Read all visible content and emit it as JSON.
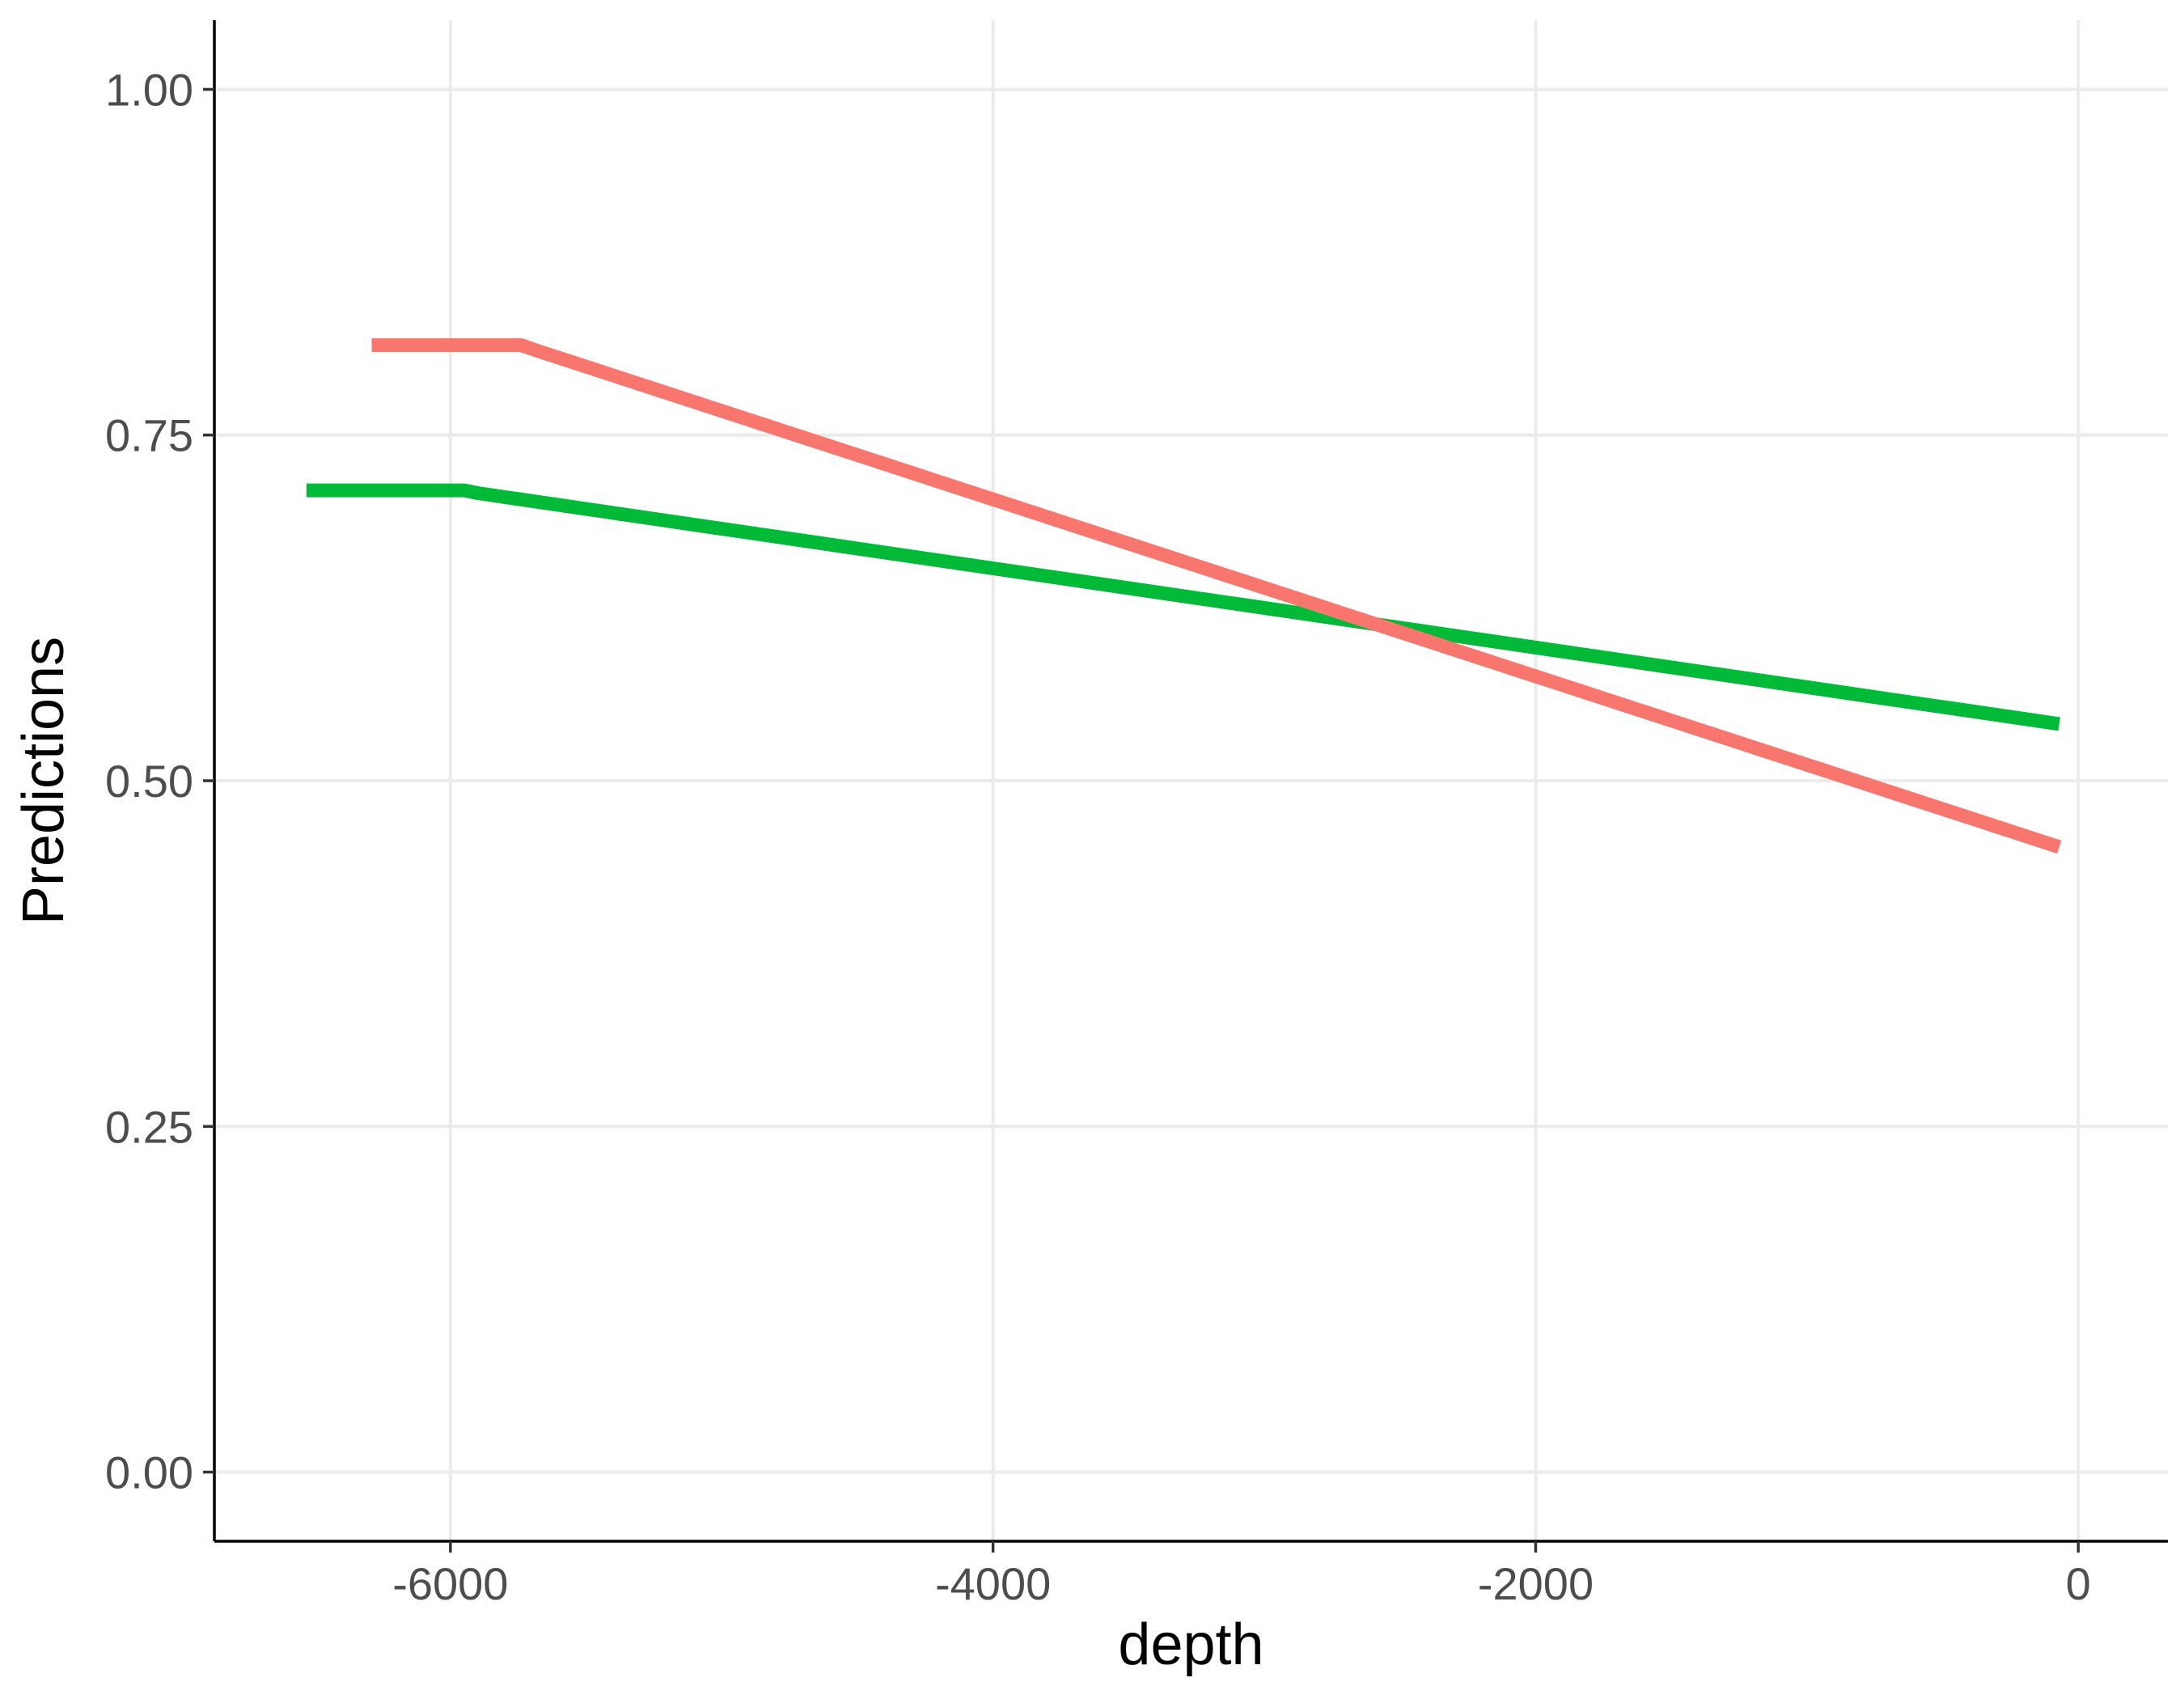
{
  "chart_data": {
    "type": "line",
    "title": "",
    "xlabel": "depth",
    "ylabel": "Predictions",
    "xlim": [
      -6870,
      330
    ],
    "ylim": [
      -0.05,
      1.05
    ],
    "x_ticks": [
      -6000,
      -4000,
      -2000,
      0
    ],
    "x_tick_labels": [
      "-6000",
      "-4000",
      "-2000",
      "0"
    ],
    "y_ticks": [
      0,
      0.25,
      0.5,
      0.75,
      1.0
    ],
    "y_tick_labels": [
      "0.00",
      "0.25",
      "0.50",
      "0.75",
      "1.00"
    ],
    "grid": true,
    "legend": "none",
    "series": [
      {
        "color": "#00ba38",
        "x": [
          -6530,
          -5950,
          -5900,
          -70
        ],
        "y": [
          0.71,
          0.71,
          0.708,
          0.541
        ]
      },
      {
        "color": "#f8766d",
        "x": [
          -6290,
          -5740,
          -5680,
          -70
        ],
        "y": [
          0.815,
          0.815,
          0.811,
          0.452
        ]
      }
    ]
  }
}
